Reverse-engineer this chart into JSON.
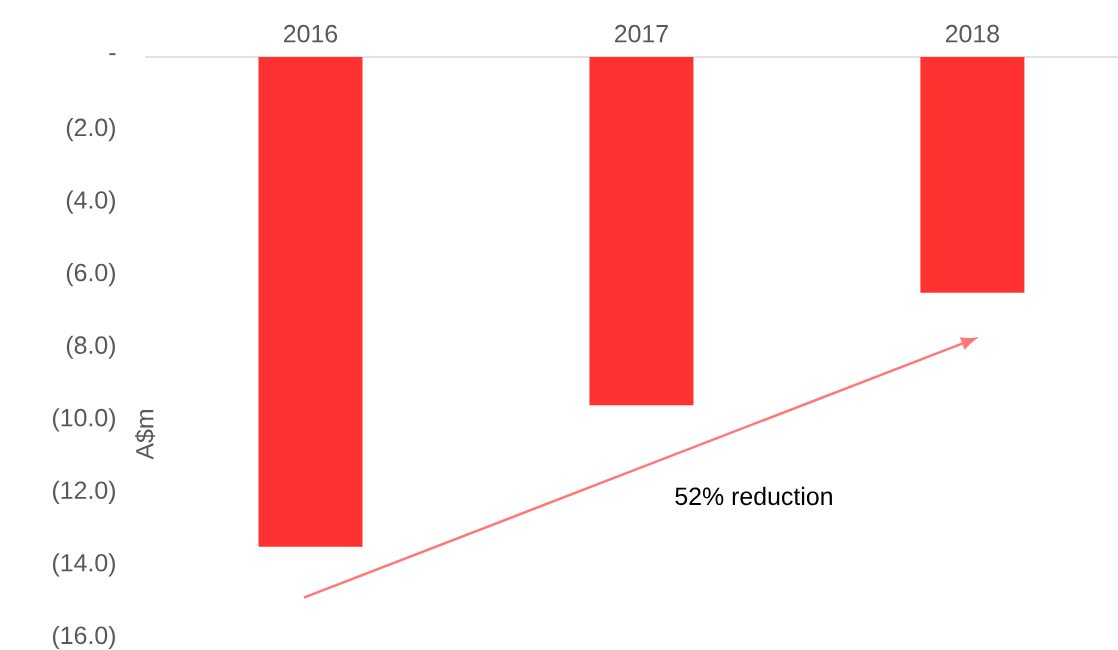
{
  "chart_data": {
    "type": "bar",
    "categories": [
      "2016",
      "2017",
      "2018"
    ],
    "values": [
      -13.5,
      -9.6,
      -6.5
    ],
    "color": "#ff3131",
    "ylabel": "A$m",
    "ylim": [
      -16,
      0
    ],
    "yticks": [
      {
        "value": 0,
        "label": "-"
      },
      {
        "value": -2,
        "label": "(2.0)"
      },
      {
        "value": -4,
        "label": "(4.0)"
      },
      {
        "value": -6,
        "label": "(6.0)"
      },
      {
        "value": -8,
        "label": "(8.0)"
      },
      {
        "value": -10,
        "label": "(10.0)"
      },
      {
        "value": -12,
        "label": "(12.0)"
      },
      {
        "value": -14,
        "label": "(14.0)"
      },
      {
        "value": -16,
        "label": "(16.0)"
      }
    ],
    "annotations": [
      "52% reduction"
    ]
  }
}
